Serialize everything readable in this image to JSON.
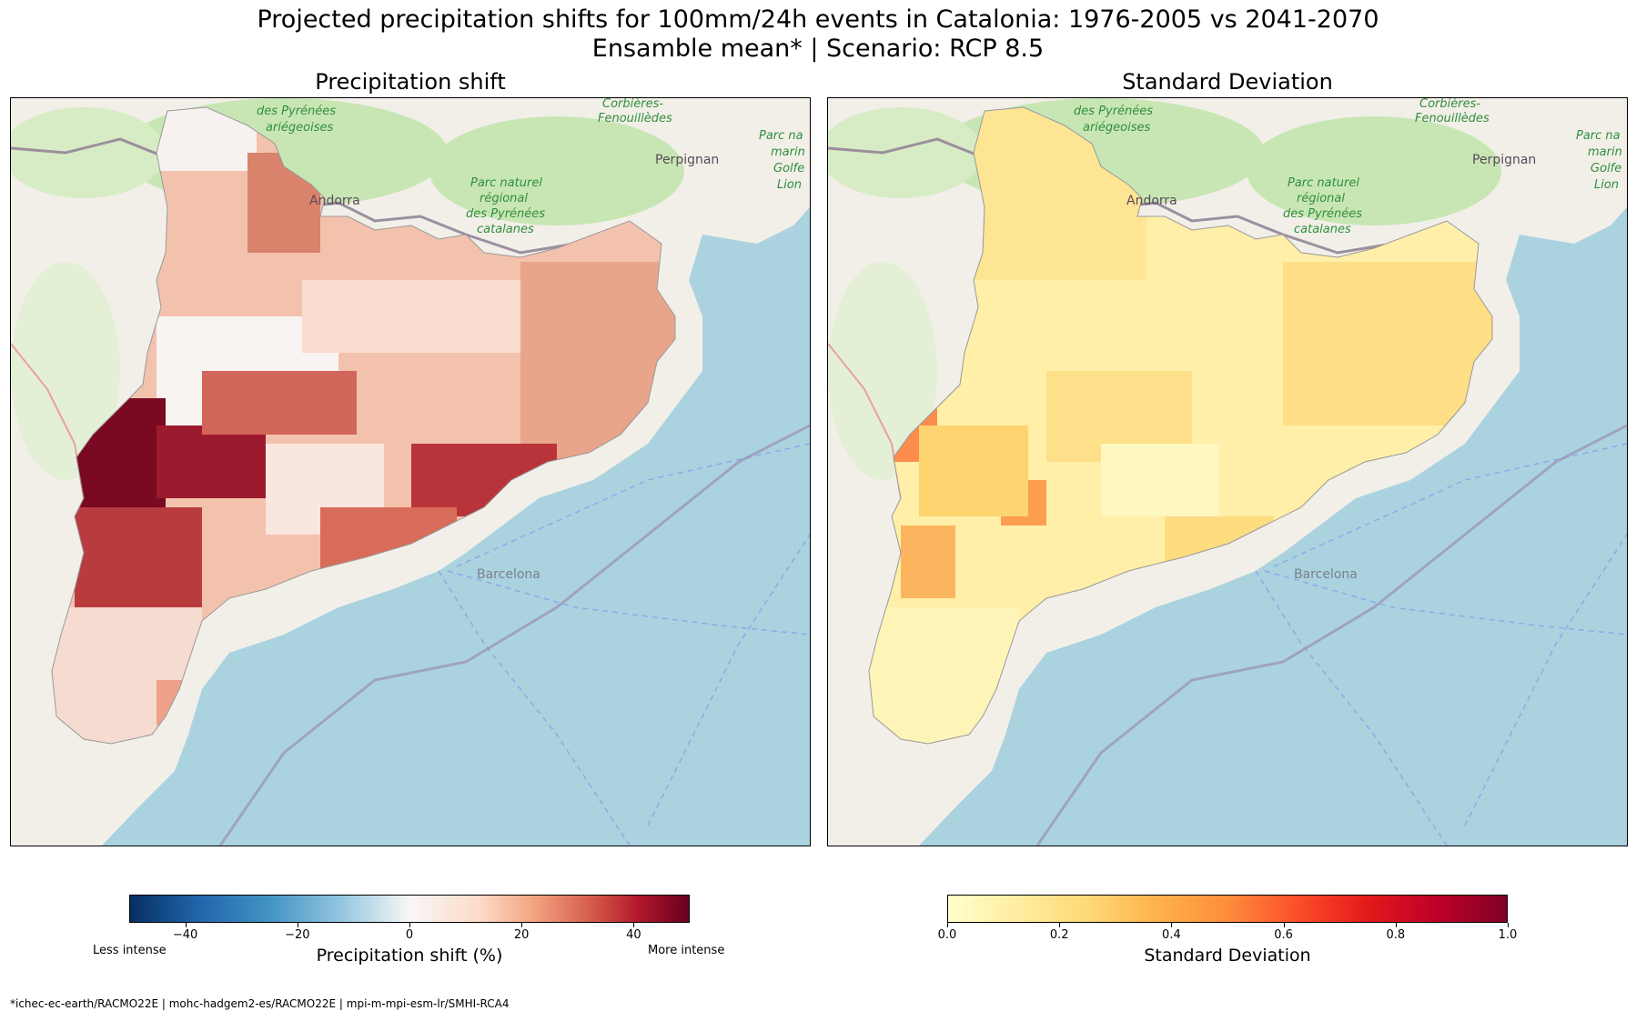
{
  "title": {
    "line1": "Projected precipitation shifts for 100mm/24h events in Catalonia: 1976-2005 vs 2041-2070",
    "line2": "Ensamble mean* | Scenario: RCP 8.5"
  },
  "panels": [
    {
      "title": "Precipitation shift",
      "colormap": "RdBu_r",
      "colorbar": {
        "label": "Precipitation shift (%)",
        "range": [
          -50,
          50
        ],
        "ticks": [
          "−40",
          "−20",
          "0",
          "20",
          "40"
        ],
        "tick_values": [
          -40,
          -20,
          0,
          20,
          40
        ],
        "left_note": "Less intense",
        "right_note": "More intense"
      }
    },
    {
      "title": "Standard Deviation",
      "colormap": "YlOrRd",
      "colorbar": {
        "label": "Standard Deviation",
        "range": [
          0.0,
          1.0
        ],
        "ticks": [
          "0.0",
          "0.2",
          "0.4",
          "0.6",
          "0.8",
          "1.0"
        ],
        "tick_values": [
          0.0,
          0.2,
          0.4,
          0.6,
          0.8,
          1.0
        ]
      }
    }
  ],
  "map_labels": {
    "andorra": "Andorra",
    "perpignan": "Perpignan",
    "barcelona": "Barcelona",
    "park_pyrenees_ariegeoises": [
      "des Pyrénées",
      "ariégeoises"
    ],
    "park_corbieres": [
      "Corbières-",
      "Fenouillèdes"
    ],
    "park_pyrenees_catalanes": [
      "Parc naturel",
      "régional",
      "des Pyrénées",
      "catalanes"
    ],
    "park_golfe_lion": [
      "Parc na",
      "marin",
      "Golfe",
      "Lion"
    ]
  },
  "colors": {
    "sea": "#aad3df",
    "land": "#f2efe9",
    "forest": "#c8e6b4",
    "shift_low": "#f7f7f7",
    "shift_mid": "#e9a58b",
    "shift_high": "#67001f",
    "sd_low": "#ffffcc",
    "sd_mid": "#fed976",
    "sd_high": "#fc4e2a"
  },
  "footnote": "*ichec-ec-earth/RACMO22E | mohc-hadgem2-es/RACMO22E | mpi-m-mpi-esm-lr/SMHI-RCA4"
}
